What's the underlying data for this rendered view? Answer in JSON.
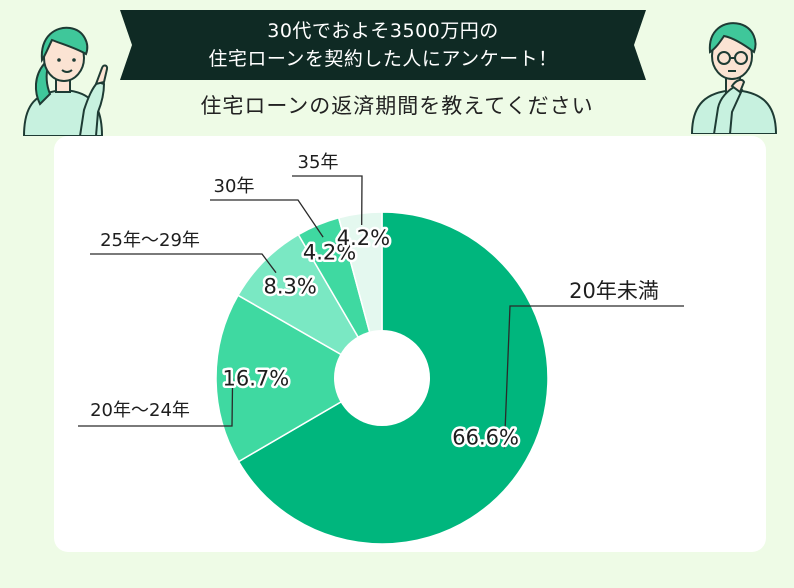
{
  "header": {
    "line1": "30代でおよそ3500万円の",
    "line2": "住宅ローンを契約した人にアンケート！",
    "question": "住宅ローンの返済期間を教えてください"
  },
  "colors": {
    "background": "#eefbe6",
    "banner": "#0f2a24",
    "card": "#ffffff"
  },
  "chart_data": {
    "type": "pie",
    "donut": true,
    "categories": [
      "20年未満",
      "20年～24年",
      "25年～29年",
      "30年",
      "35年"
    ],
    "values": [
      66.6,
      16.7,
      8.3,
      4.2,
      4.2
    ],
    "value_labels": [
      "66.6%",
      "16.7%",
      "8.3%",
      "4.2%",
      "4.2%"
    ],
    "colors": [
      "#00b67d",
      "#3fd9a1",
      "#7ae8c3",
      "#3fd9a1",
      "#e4f8ef"
    ],
    "direction": "clockwise",
    "start": "12 o'clock"
  }
}
